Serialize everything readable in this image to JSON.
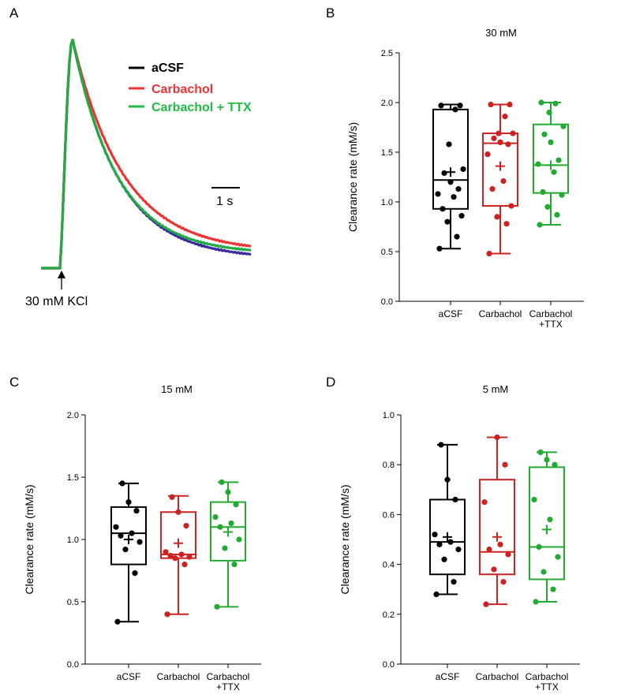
{
  "panel_labels": [
    "A",
    "B",
    "C",
    "D"
  ],
  "panel_a": {
    "legend": [
      {
        "label": "aCSF",
        "color": "#000000"
      },
      {
        "label": "Carbachol",
        "color": "#ee3333"
      },
      {
        "label": "Carbachol + TTX",
        "color": "#22bb44"
      }
    ],
    "scale_label": "1 s",
    "stimulus_label": "30 mM KCl",
    "trace_colors": {
      "acsf": "#3a2aa0",
      "carbachol": "#ee3333",
      "ttx": "#22aa44"
    }
  },
  "chart_data": [
    {
      "type": "box",
      "panel": "B",
      "title": "30 mM",
      "ylabel": "Clearance rate (mM/s)",
      "ylim": [
        0,
        2.5
      ],
      "yticks": [
        "0.0",
        "0.5",
        "1.0",
        "1.5",
        "2.0",
        "2.5"
      ],
      "categories": [
        "aCSF",
        "Carbachol",
        "Carbachol\n+TTX"
      ],
      "colors": [
        "#000000",
        "#cc2222",
        "#22aa33"
      ],
      "groups": [
        {
          "name": "aCSF",
          "min": 0.53,
          "q1": 0.93,
          "median": 1.22,
          "q3": 1.93,
          "max": 1.98,
          "mean": 1.3,
          "points": [
            0.53,
            0.65,
            0.8,
            0.86,
            0.93,
            1.05,
            1.08,
            1.13,
            1.2,
            1.29,
            1.33,
            1.58,
            1.93,
            1.97,
            1.97
          ]
        },
        {
          "name": "Carbachol",
          "min": 0.48,
          "q1": 0.96,
          "median": 1.59,
          "q3": 1.69,
          "max": 1.98,
          "mean": 1.36,
          "points": [
            0.48,
            0.78,
            0.85,
            0.96,
            1.13,
            1.21,
            1.48,
            1.58,
            1.6,
            1.64,
            1.69,
            1.69,
            1.86,
            1.98,
            1.98
          ]
        },
        {
          "name": "Carbachol +TTX",
          "min": 0.77,
          "q1": 1.09,
          "median": 1.37,
          "q3": 1.78,
          "max": 2.0,
          "mean": 1.37,
          "points": [
            0.77,
            0.87,
            0.95,
            1.07,
            1.1,
            1.3,
            1.38,
            1.42,
            1.6,
            1.68,
            1.76,
            1.9,
            1.99,
            2.0
          ]
        }
      ]
    },
    {
      "type": "box",
      "panel": "C",
      "title": "15 mM",
      "ylabel": "Clearance rate (mM/s)",
      "ylim": [
        0,
        2.0
      ],
      "yticks": [
        "0.0",
        "0.5",
        "1.0",
        "1.5",
        "2.0"
      ],
      "categories": [
        "aCSF",
        "Carbachol",
        "Carbachol\n+TTX"
      ],
      "colors": [
        "#000000",
        "#cc2222",
        "#22aa33"
      ],
      "groups": [
        {
          "name": "aCSF",
          "min": 0.34,
          "q1": 0.8,
          "median": 1.05,
          "q3": 1.26,
          "max": 1.45,
          "mean": 1.0,
          "points": [
            0.34,
            0.73,
            0.92,
            0.98,
            1.03,
            1.05,
            1.1,
            1.23,
            1.3,
            1.45
          ]
        },
        {
          "name": "Carbachol",
          "min": 0.4,
          "q1": 0.85,
          "median": 0.88,
          "q3": 1.22,
          "max": 1.35,
          "mean": 0.97,
          "points": [
            0.4,
            0.8,
            0.85,
            0.86,
            0.87,
            0.88,
            0.9,
            1.11,
            1.22,
            1.34
          ]
        },
        {
          "name": "Carbachol +TTX",
          "min": 0.46,
          "q1": 0.83,
          "median": 1.1,
          "q3": 1.3,
          "max": 1.46,
          "mean": 1.06,
          "points": [
            0.46,
            0.8,
            0.93,
            1.0,
            1.1,
            1.13,
            1.18,
            1.28,
            1.38,
            1.46
          ]
        }
      ]
    },
    {
      "type": "box",
      "panel": "D",
      "title": "5 mM",
      "ylabel": "Clearance rate (mM/s)",
      "ylim": [
        0,
        1.0
      ],
      "yticks": [
        "0.0",
        "0.2",
        "0.4",
        "0.6",
        "0.8",
        "1.0"
      ],
      "categories": [
        "aCSF",
        "Carbachol",
        "Carbachol\n+TTX"
      ],
      "colors": [
        "#000000",
        "#cc2222",
        "#22aa33"
      ],
      "groups": [
        {
          "name": "aCSF",
          "min": 0.28,
          "q1": 0.36,
          "median": 0.49,
          "q3": 0.66,
          "max": 0.88,
          "mean": 0.51,
          "points": [
            0.28,
            0.33,
            0.42,
            0.46,
            0.48,
            0.49,
            0.52,
            0.66,
            0.74,
            0.88
          ]
        },
        {
          "name": "Carbachol",
          "min": 0.24,
          "q1": 0.36,
          "median": 0.45,
          "q3": 0.74,
          "max": 0.91,
          "mean": 0.51,
          "points": [
            0.24,
            0.33,
            0.38,
            0.44,
            0.46,
            0.48,
            0.65,
            0.8,
            0.91
          ]
        },
        {
          "name": "Carbachol +TTX",
          "min": 0.25,
          "q1": 0.34,
          "median": 0.47,
          "q3": 0.79,
          "max": 0.85,
          "mean": 0.54,
          "points": [
            0.25,
            0.3,
            0.37,
            0.43,
            0.47,
            0.58,
            0.66,
            0.8,
            0.82,
            0.85
          ]
        }
      ]
    }
  ]
}
